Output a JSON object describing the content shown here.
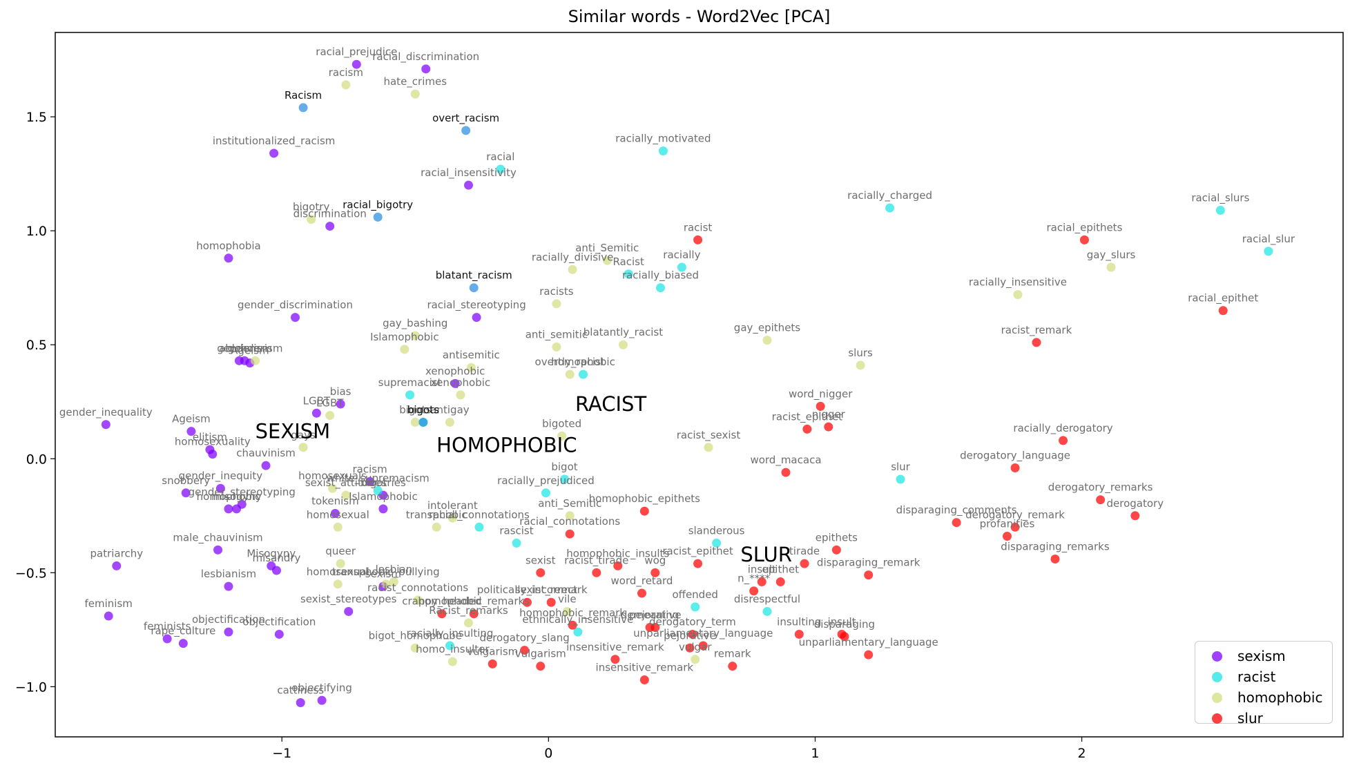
{
  "chart_data": {
    "type": "scatter",
    "title": "Similar words - Word2Vec [PCA]",
    "xlabel": "",
    "ylabel": "",
    "xlim": [
      -1.85,
      2.98
    ],
    "ylim": [
      -1.22,
      1.87
    ],
    "xticks": [
      -1,
      0,
      1,
      2
    ],
    "yticks": [
      -1.0,
      -0.5,
      0.0,
      0.5,
      1.0,
      1.5
    ],
    "legend_position": "lower-right",
    "grid": false,
    "colors": {
      "sexism": "#8000ff",
      "racist": "#1ce4e4",
      "homophobic": "#d4dd80",
      "slur": "#ff0000",
      "racism_query": "#2a8de0"
    },
    "series": [
      {
        "name": "sexism",
        "color": "#8000ff",
        "points": [
          {
            "x": -0.72,
            "y": 1.73,
            "label": "racial_prejudice"
          },
          {
            "x": -0.46,
            "y": 1.71,
            "label": "racial_discrimination"
          },
          {
            "x": -1.03,
            "y": 1.34,
            "label": "institutionalized_racism"
          },
          {
            "x": -0.3,
            "y": 1.2,
            "label": "racial_insensitivity"
          },
          {
            "x": -0.82,
            "y": 1.02,
            "label": "discrimination"
          },
          {
            "x": -1.2,
            "y": 0.88,
            "label": "homophobia"
          },
          {
            "x": -0.27,
            "y": 0.62,
            "label": "racial_stereotyping"
          },
          {
            "x": -0.95,
            "y": 0.62,
            "label": "gender_discrimination"
          },
          {
            "x": -1.14,
            "y": 0.43,
            "label": "genderism"
          },
          {
            "x": -1.16,
            "y": 0.43,
            "label": "ableism"
          },
          {
            "x": -1.12,
            "y": 0.42,
            "label": "Ageism"
          },
          {
            "x": -0.35,
            "y": 0.33,
            "label": "xenophobic"
          },
          {
            "x": -0.78,
            "y": 0.24,
            "label": "bias"
          },
          {
            "x": -0.87,
            "y": 0.2,
            "label": "LGBT"
          },
          {
            "x": -1.66,
            "y": 0.15,
            "label": "gender_inequality"
          },
          {
            "x": -1.34,
            "y": 0.12,
            "label": "Ageism"
          },
          {
            "x": -1.26,
            "y": 0.02,
            "label": "homosexuality"
          },
          {
            "x": -1.27,
            "y": 0.04,
            "label": "elitism"
          },
          {
            "x": -1.06,
            "y": -0.03,
            "label": "chauvinism"
          },
          {
            "x": -0.67,
            "y": -0.1,
            "label": "racism"
          },
          {
            "x": -0.62,
            "y": -0.16,
            "label": "bigotries"
          },
          {
            "x": -1.23,
            "y": -0.13,
            "label": "gender_inequity"
          },
          {
            "x": -1.36,
            "y": -0.15,
            "label": "snobbery"
          },
          {
            "x": -1.15,
            "y": -0.2,
            "label": "gender_stereotyping"
          },
          {
            "x": -1.17,
            "y": -0.22,
            "label": "misogyny"
          },
          {
            "x": -1.2,
            "y": -0.22,
            "label": "homophobic"
          },
          {
            "x": -0.62,
            "y": -0.22,
            "label": "Islamophobic"
          },
          {
            "x": -0.8,
            "y": -0.24,
            "label": "tokenism"
          },
          {
            "x": -1.24,
            "y": -0.4,
            "label": "male_chauvinism"
          },
          {
            "x": -1.62,
            "y": -0.47,
            "label": "patriarchy"
          },
          {
            "x": -1.04,
            "y": -0.47,
            "label": "Misogyny"
          },
          {
            "x": -1.02,
            "y": -0.49,
            "label": "misandry"
          },
          {
            "x": -1.2,
            "y": -0.56,
            "label": "lesbianism"
          },
          {
            "x": -0.62,
            "y": -0.56,
            "label": "sexism"
          },
          {
            "x": -0.75,
            "y": -0.67,
            "label": "sexist_stereotypes"
          },
          {
            "x": -1.65,
            "y": -0.69,
            "label": "feminism"
          },
          {
            "x": -1.2,
            "y": -0.76,
            "label": "objectification"
          },
          {
            "x": -1.01,
            "y": -0.77,
            "label": "objectification"
          },
          {
            "x": -1.43,
            "y": -0.79,
            "label": "feminists"
          },
          {
            "x": -1.37,
            "y": -0.81,
            "label": "rape_culture"
          },
          {
            "x": -0.85,
            "y": -1.06,
            "label": "objectifying"
          },
          {
            "x": -0.93,
            "y": -1.07,
            "label": "cattiness"
          }
        ]
      },
      {
        "name": "racist",
        "color": "#1ce4e4",
        "points": [
          {
            "x": 0.43,
            "y": 1.35,
            "label": "racially_motivated"
          },
          {
            "x": -0.18,
            "y": 1.27,
            "label": "racial"
          },
          {
            "x": 1.28,
            "y": 1.1,
            "label": "racially_charged"
          },
          {
            "x": 2.52,
            "y": 1.09,
            "label": "racial_slurs"
          },
          {
            "x": 2.7,
            "y": 0.91,
            "label": "racial_slur"
          },
          {
            "x": 0.5,
            "y": 0.84,
            "label": "racially"
          },
          {
            "x": 0.3,
            "y": 0.81,
            "label": "Racist"
          },
          {
            "x": 0.42,
            "y": 0.75,
            "label": "racially_biased"
          },
          {
            "x": 0.13,
            "y": 0.37,
            "label": "homophobic"
          },
          {
            "x": -0.52,
            "y": 0.28,
            "label": "supremacist"
          },
          {
            "x": -0.47,
            "y": 0.16,
            "label": "bigots"
          },
          {
            "x": 1.32,
            "y": -0.09,
            "label": "slur"
          },
          {
            "x": 0.06,
            "y": -0.09,
            "label": "bigot"
          },
          {
            "x": -0.01,
            "y": -0.15,
            "label": "racially_prejudiced"
          },
          {
            "x": -0.64,
            "y": -0.14,
            "label": "white_supremacism"
          },
          {
            "x": -0.26,
            "y": -0.3,
            "label": "racial_connotations"
          },
          {
            "x": -0.12,
            "y": -0.37,
            "label": "rascist"
          },
          {
            "x": 0.63,
            "y": -0.37,
            "label": "slanderous"
          },
          {
            "x": 0.55,
            "y": -0.65,
            "label": "offended"
          },
          {
            "x": 0.82,
            "y": -0.67,
            "label": "disrespectful"
          },
          {
            "x": 0.11,
            "y": -0.76,
            "label": "ethnically_insensitive"
          },
          {
            "x": -0.37,
            "y": -0.82,
            "label": "racially_insulting"
          }
        ]
      },
      {
        "name": "homophobic",
        "color": "#d4dd80",
        "points": [
          {
            "x": -0.76,
            "y": 1.64,
            "label": "racism"
          },
          {
            "x": -0.5,
            "y": 1.6,
            "label": "hate_crimes"
          },
          {
            "x": -0.89,
            "y": 1.05,
            "label": "bigotry"
          },
          {
            "x": 0.22,
            "y": 0.87,
            "label": "anti_Semitic"
          },
          {
            "x": 0.09,
            "y": 0.83,
            "label": "racially_divisive"
          },
          {
            "x": 1.76,
            "y": 0.72,
            "label": "racially_insensitive"
          },
          {
            "x": 2.11,
            "y": 0.84,
            "label": "gay_slurs"
          },
          {
            "x": 0.03,
            "y": 0.68,
            "label": "racists"
          },
          {
            "x": 0.82,
            "y": 0.52,
            "label": "gay_epithets"
          },
          {
            "x": 0.28,
            "y": 0.5,
            "label": "blatantly_racist"
          },
          {
            "x": 0.03,
            "y": 0.49,
            "label": "anti_semitic"
          },
          {
            "x": -0.54,
            "y": 0.48,
            "label": "Islamophobic"
          },
          {
            "x": -0.5,
            "y": 0.54,
            "label": "gay_bashing"
          },
          {
            "x": -0.29,
            "y": 0.4,
            "label": "antisemitic"
          },
          {
            "x": 1.17,
            "y": 0.41,
            "label": "slurs"
          },
          {
            "x": -0.33,
            "y": 0.28,
            "label": "xenophobic"
          },
          {
            "x": 0.08,
            "y": 0.37,
            "label": "overtly_racist"
          },
          {
            "x": -1.1,
            "y": 0.43,
            "label": "genderism"
          },
          {
            "x": -0.82,
            "y": 0.19,
            "label": "LGBT"
          },
          {
            "x": -0.37,
            "y": 0.16,
            "label": "antigay"
          },
          {
            "x": -0.5,
            "y": 0.16,
            "label": "bigots"
          },
          {
            "x": 0.6,
            "y": 0.05,
            "label": "racist_sexist"
          },
          {
            "x": 0.05,
            "y": 0.1,
            "label": "bigoted"
          },
          {
            "x": -0.92,
            "y": 0.05,
            "label": "gays"
          },
          {
            "x": -0.76,
            "y": -0.16,
            "label": "sexist_attitudes"
          },
          {
            "x": -0.81,
            "y": -0.13,
            "label": "homosexuals"
          },
          {
            "x": 0.08,
            "y": -0.25,
            "label": "anti_Semitic"
          },
          {
            "x": -0.36,
            "y": -0.26,
            "label": "intolerant"
          },
          {
            "x": -0.42,
            "y": -0.3,
            "label": "transphobic"
          },
          {
            "x": -0.79,
            "y": -0.3,
            "label": "homosexual"
          },
          {
            "x": -0.78,
            "y": -0.46,
            "label": "queer"
          },
          {
            "x": -0.58,
            "y": -0.54,
            "label": "lesbian"
          },
          {
            "x": -0.61,
            "y": -0.55,
            "label": "transphobic_bullying"
          },
          {
            "x": -0.79,
            "y": -0.55,
            "label": "homosexual"
          },
          {
            "x": -0.49,
            "y": -0.62,
            "label": "racist_connotations"
          },
          {
            "x": -0.3,
            "y": -0.72,
            "label": "Racist_remarks"
          },
          {
            "x": 0.07,
            "y": -0.67,
            "label": "vile"
          },
          {
            "x": -0.5,
            "y": -0.83,
            "label": "bigot_homophobe"
          },
          {
            "x": -0.36,
            "y": -0.89,
            "label": "homo_insulter"
          },
          {
            "x": 0.55,
            "y": -0.88,
            "label": "vulgar"
          }
        ]
      },
      {
        "name": "slur",
        "color": "#ff0000",
        "points": [
          {
            "x": 0.56,
            "y": 0.96,
            "label": "racist"
          },
          {
            "x": 2.01,
            "y": 0.96,
            "label": "racial_epithets"
          },
          {
            "x": 2.53,
            "y": 0.65,
            "label": "racial_epithet"
          },
          {
            "x": 1.83,
            "y": 0.51,
            "label": "racist_remark"
          },
          {
            "x": 1.02,
            "y": 0.23,
            "label": "word_nigger"
          },
          {
            "x": 0.97,
            "y": 0.13,
            "label": "racist_epithet"
          },
          {
            "x": 1.05,
            "y": 0.14,
            "label": "nigger"
          },
          {
            "x": 1.93,
            "y": 0.08,
            "label": "racially_derogatory"
          },
          {
            "x": 1.75,
            "y": -0.04,
            "label": "derogatory_language"
          },
          {
            "x": 0.89,
            "y": -0.06,
            "label": "word_macaca"
          },
          {
            "x": 2.07,
            "y": -0.18,
            "label": "derogatory_remarks"
          },
          {
            "x": 2.2,
            "y": -0.25,
            "label": "derogatory"
          },
          {
            "x": 0.36,
            "y": -0.23,
            "label": "homophobic_epithets"
          },
          {
            "x": 1.53,
            "y": -0.28,
            "label": "disparaging_comments"
          },
          {
            "x": 1.75,
            "y": -0.3,
            "label": "derogatory_remark"
          },
          {
            "x": 1.72,
            "y": -0.34,
            "label": "profanities"
          },
          {
            "x": 0.08,
            "y": -0.33,
            "label": "racial_connotations"
          },
          {
            "x": 1.9,
            "y": -0.44,
            "label": "disparaging_remarks"
          },
          {
            "x": 1.08,
            "y": -0.4,
            "label": "epithets"
          },
          {
            "x": 0.96,
            "y": -0.46,
            "label": "tirade"
          },
          {
            "x": 0.56,
            "y": -0.46,
            "label": "racist_epithet"
          },
          {
            "x": 0.26,
            "y": -0.47,
            "label": "homophobic_insults"
          },
          {
            "x": 0.18,
            "y": -0.5,
            "label": "racist_tirade"
          },
          {
            "x": 0.4,
            "y": -0.5,
            "label": "wog"
          },
          {
            "x": -0.03,
            "y": -0.5,
            "label": "sexist"
          },
          {
            "x": 1.2,
            "y": -0.51,
            "label": "disparaging_remark"
          },
          {
            "x": 0.77,
            "y": -0.58,
            "label": "n_****"
          },
          {
            "x": 0.8,
            "y": -0.54,
            "label": "insult"
          },
          {
            "x": 0.87,
            "y": -0.54,
            "label": "epithet"
          },
          {
            "x": 0.35,
            "y": -0.59,
            "label": "word_retard"
          },
          {
            "x": -0.28,
            "y": -0.68,
            "label": "homophobic_remarks"
          },
          {
            "x": -0.08,
            "y": -0.63,
            "label": "politically_incorrect"
          },
          {
            "x": 0.01,
            "y": -0.63,
            "label": "sexist_remark"
          },
          {
            "x": 0.09,
            "y": -0.73,
            "label": "homophobic_remark"
          },
          {
            "x": 0.4,
            "y": -0.74,
            "label": "pejorative"
          },
          {
            "x": 0.38,
            "y": -0.74,
            "label": "demeaning"
          },
          {
            "x": 0.54,
            "y": -0.77,
            "label": "derogatory_term"
          },
          {
            "x": 0.53,
            "y": -0.83,
            "label": "pejorative"
          },
          {
            "x": 0.58,
            "y": -0.82,
            "label": "unparliamentary_language"
          },
          {
            "x": 0.94,
            "y": -0.77,
            "label": "insulting"
          },
          {
            "x": 1.1,
            "y": -0.77,
            "label": "insult"
          },
          {
            "x": 1.11,
            "y": -0.78,
            "label": "disparaging"
          },
          {
            "x": -0.09,
            "y": -0.84,
            "label": "derogatory_slang"
          },
          {
            "x": -0.21,
            "y": -0.9,
            "label": "vulgarism"
          },
          {
            "x": -0.03,
            "y": -0.91,
            "label": "vulgarism"
          },
          {
            "x": 0.25,
            "y": -0.88,
            "label": "insensitive_remark"
          },
          {
            "x": 0.36,
            "y": -0.97,
            "label": "insensitive_remark"
          },
          {
            "x": 0.69,
            "y": -0.91,
            "label": "remark"
          },
          {
            "x": 1.2,
            "y": -0.86,
            "label": "unparliamentary_language"
          },
          {
            "x": -0.4,
            "y": -0.68,
            "label": "crappy_headed"
          }
        ]
      },
      {
        "name": "",
        "color": "#2a8de0",
        "legend": false,
        "points": [
          {
            "x": -0.92,
            "y": 1.54,
            "label": "Racism"
          },
          {
            "x": -0.31,
            "y": 1.44,
            "label": "overt_racism"
          },
          {
            "x": -0.64,
            "y": 1.06,
            "label": "racial_bigotry"
          },
          {
            "x": -0.28,
            "y": 0.75,
            "label": "blatant_racism"
          },
          {
            "x": -0.47,
            "y": 0.16,
            "label": "bigots"
          }
        ]
      }
    ],
    "annotations": [
      {
        "text": "SEXISM",
        "x": -1.1,
        "y": 0.09
      },
      {
        "text": "RACIST",
        "x": 0.1,
        "y": 0.21
      },
      {
        "text": "HOMOPHOBIC",
        "x": -0.42,
        "y": 0.03
      },
      {
        "text": "SLUR",
        "x": 0.72,
        "y": -0.45
      }
    ]
  }
}
